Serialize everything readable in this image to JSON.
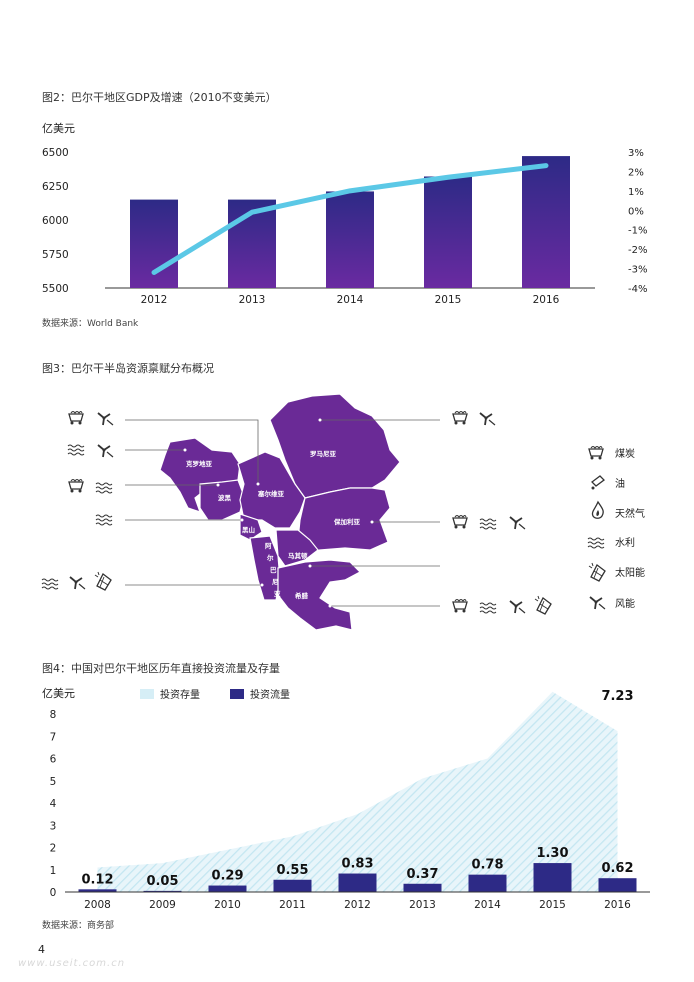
{
  "page_number": "4",
  "watermark": "www.useit.com.cn",
  "fig2": {
    "title": "图2：巴尔干地区GDP及增速（2010不变美元）",
    "unit": "亿美元",
    "source": "数据来源：World Bank"
  },
  "fig3": {
    "title": "图3：巴尔干半岛资源禀赋分布概况",
    "countries": [
      "罗马尼亚",
      "克罗地亚",
      "塞尔维亚",
      "波黑",
      "保加利亚",
      "黑山",
      "马其顿",
      "阿尔巴尼亚",
      "希腊"
    ],
    "legend": [
      {
        "icon": "coal-cart-icon",
        "label": "煤炭"
      },
      {
        "icon": "oil-can-icon",
        "label": "油"
      },
      {
        "icon": "gas-flame-icon",
        "label": "天然气"
      },
      {
        "icon": "water-waves-icon",
        "label": "水利"
      },
      {
        "icon": "solar-panel-icon",
        "label": "太阳能"
      },
      {
        "icon": "wind-turbine-icon",
        "label": "风能"
      }
    ]
  },
  "fig4": {
    "title": "图4：中国对巴尔干地区历年直接投资流量及存量",
    "unit": "亿美元",
    "source": "数据来源：商务部",
    "legend": {
      "stock": "投资存量",
      "flow": "投资流量"
    },
    "stock_end_label": "7.23"
  },
  "colors": {
    "bar_top": "#2d2a86",
    "bar_bottom": "#6a2aa1",
    "line": "#5bc8e6",
    "map": "#6a2a96",
    "stock_fill": "#d6eef6",
    "flow": "#2d2a86"
  },
  "chart_data": [
    {
      "type": "bar",
      "categories": [
        "2012",
        "2013",
        "2014",
        "2015",
        "2016"
      ],
      "series": [
        {
          "values": [
            6150,
            6150,
            6210,
            6320,
            6470
          ],
          "axis": "left"
        },
        {
          "type": "line",
          "values": [
            -3.2,
            -0.1,
            1.0,
            1.7,
            2.3
          ],
          "axis": "right"
        }
      ],
      "ylabel": "亿美元",
      "ylim": [
        5500,
        6500
      ],
      "yticks": [
        5500,
        5750,
        6000,
        6250,
        6500
      ],
      "y2lim": [
        -4,
        3
      ],
      "y2ticks": [
        "3%",
        "2%",
        "1%",
        "0%",
        "-1%",
        "-2%",
        "-3%",
        "-4%"
      ],
      "grid": false
    },
    {
      "type": "bar",
      "categories": [
        "2008",
        "2009",
        "2010",
        "2011",
        "2012",
        "2013",
        "2014",
        "2015",
        "2016"
      ],
      "series": [
        {
          "name": "投资流量",
          "values": [
            0.12,
            0.05,
            0.29,
            0.55,
            0.83,
            0.37,
            0.78,
            1.3,
            0.62
          ]
        },
        {
          "name": "投资存量",
          "type": "area",
          "values": [
            1.1,
            1.3,
            1.9,
            2.5,
            3.5,
            5.1,
            6.0,
            9.0,
            7.23
          ]
        }
      ],
      "data_labels": [
        "0.12",
        "0.05",
        "0.29",
        "0.55",
        "0.83",
        "0.37",
        "0.78",
        "1.30",
        "0.62"
      ],
      "ylabel": "亿美元",
      "ylim": [
        0,
        8
      ],
      "yticks": [
        0,
        1,
        2,
        3,
        4,
        5,
        6,
        7,
        8
      ],
      "legend": "top-left",
      "grid": false
    }
  ]
}
